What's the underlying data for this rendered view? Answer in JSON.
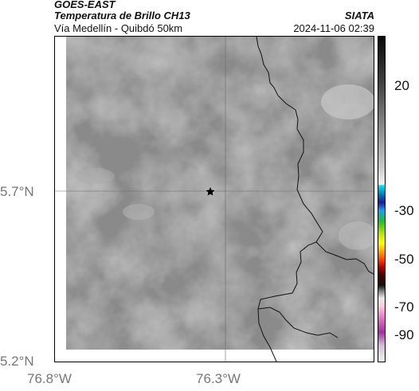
{
  "header": {
    "satellite": "GOES-EAST",
    "product": "Temperatura de Brillo CH13",
    "region": "Vía Medellín - Quibdó 50km",
    "agency": "SIATA",
    "datetime": "2024-11-06 02:39"
  },
  "axes": {
    "y_ticks": [
      "5.7°N",
      "5.2°N"
    ],
    "x_ticks": [
      "76.8°W",
      "76.3°W"
    ]
  },
  "colorbar": {
    "ticks": [
      "20",
      "-30",
      "-50",
      "-70",
      "-90"
    ]
  },
  "colors": {
    "background_gray": "#8c8c8c",
    "coastline": "#000000",
    "grid": "#666666"
  },
  "map_features": {
    "marker_icon": "star-marker-icon"
  }
}
